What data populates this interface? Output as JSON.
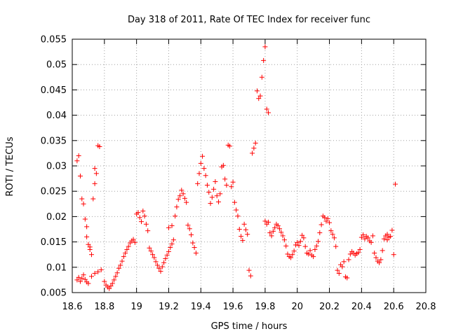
{
  "chart_data": {
    "type": "scatter",
    "title": "Day 318 of 2011, Rate Of TEC Index for receiver func",
    "xlabel": "GPS time / hours",
    "ylabel": "ROTI / TECUs",
    "xlim": [
      18.6,
      20.8
    ],
    "ylim": [
      0.005,
      0.055
    ],
    "x_ticks": [
      18.6,
      18.8,
      19,
      19.2,
      19.4,
      19.6,
      19.8,
      20,
      20.2,
      20.4,
      20.6,
      20.8
    ],
    "x_tick_labels": [
      "18.6",
      "18.8",
      "19",
      "19.2",
      "19.4",
      "19.6",
      "19.8",
      "20",
      "20.2",
      "20.4",
      "20.6",
      "20.8"
    ],
    "y_ticks": [
      0.005,
      0.01,
      0.015,
      0.02,
      0.025,
      0.03,
      0.035,
      0.04,
      0.045,
      0.05,
      0.055
    ],
    "y_tick_labels": [
      "0.005",
      "0.01",
      "0.015",
      "0.02",
      "0.025",
      "0.03",
      "0.035",
      "0.04",
      "0.045",
      "0.05",
      "0.055"
    ],
    "grid": true,
    "marker": "+",
    "colors": {
      "points": "#ff0000",
      "grid": "#a0a0a0",
      "axis": "#000000"
    },
    "series": [
      {
        "points": [
          [
            18.63,
            0.031
          ],
          [
            18.64,
            0.032
          ],
          [
            18.65,
            0.028
          ],
          [
            18.66,
            0.0235
          ],
          [
            18.67,
            0.0225
          ],
          [
            18.68,
            0.0195
          ],
          [
            18.69,
            0.018
          ],
          [
            18.7,
            0.0145
          ],
          [
            18.71,
            0.0135
          ],
          [
            18.72,
            0.0125
          ],
          [
            18.73,
            0.0235
          ],
          [
            18.74,
            0.0265
          ],
          [
            18.75,
            0.0285
          ],
          [
            18.76,
            0.034
          ],
          [
            18.77,
            0.0338
          ],
          [
            18.74,
            0.0295
          ],
          [
            18.71,
            0.014
          ],
          [
            18.69,
            0.016
          ],
          [
            18.63,
            0.0075
          ],
          [
            18.64,
            0.008
          ],
          [
            18.65,
            0.0072
          ],
          [
            18.66,
            0.0078
          ],
          [
            18.67,
            0.0085
          ],
          [
            18.68,
            0.0076
          ],
          [
            18.69,
            0.0071
          ],
          [
            18.7,
            0.0068
          ],
          [
            18.72,
            0.0082
          ],
          [
            18.74,
            0.0088
          ],
          [
            18.76,
            0.0091
          ],
          [
            18.78,
            0.0095
          ],
          [
            18.8,
            0.0072
          ],
          [
            18.81,
            0.0065
          ],
          [
            18.82,
            0.0061
          ],
          [
            18.83,
            0.0058
          ],
          [
            18.84,
            0.0063
          ],
          [
            18.85,
            0.0068
          ],
          [
            18.86,
            0.0075
          ],
          [
            18.87,
            0.0082
          ],
          [
            18.88,
            0.0089
          ],
          [
            18.89,
            0.0098
          ],
          [
            18.9,
            0.0104
          ],
          [
            18.91,
            0.0112
          ],
          [
            18.92,
            0.0121
          ],
          [
            18.93,
            0.0128
          ],
          [
            18.94,
            0.0135
          ],
          [
            18.95,
            0.0141
          ],
          [
            18.96,
            0.0148
          ],
          [
            18.97,
            0.0152
          ],
          [
            18.98,
            0.0155
          ],
          [
            18.99,
            0.0149
          ],
          [
            19.0,
            0.0205
          ],
          [
            19.01,
            0.0208
          ],
          [
            19.02,
            0.0198
          ],
          [
            19.03,
            0.019
          ],
          [
            19.04,
            0.0211
          ],
          [
            19.05,
            0.0201
          ],
          [
            19.06,
            0.0185
          ],
          [
            19.07,
            0.0172
          ],
          [
            19.08,
            0.0138
          ],
          [
            19.09,
            0.0132
          ],
          [
            19.1,
            0.0125
          ],
          [
            19.11,
            0.0119
          ],
          [
            19.12,
            0.0111
          ],
          [
            19.13,
            0.0104
          ],
          [
            19.14,
            0.0098
          ],
          [
            19.15,
            0.0092
          ],
          [
            19.16,
            0.0101
          ],
          [
            19.17,
            0.0109
          ],
          [
            19.18,
            0.0117
          ],
          [
            19.19,
            0.0124
          ],
          [
            19.2,
            0.0131
          ],
          [
            19.21,
            0.0139
          ],
          [
            19.22,
            0.0146
          ],
          [
            19.23,
            0.0154
          ],
          [
            19.2,
            0.0178
          ],
          [
            19.22,
            0.0182
          ],
          [
            19.24,
            0.0201
          ],
          [
            19.25,
            0.0219
          ],
          [
            19.26,
            0.0234
          ],
          [
            19.27,
            0.0241
          ],
          [
            19.28,
            0.0252
          ],
          [
            19.29,
            0.0245
          ],
          [
            19.3,
            0.0236
          ],
          [
            19.31,
            0.0228
          ],
          [
            19.32,
            0.0183
          ],
          [
            19.33,
            0.0176
          ],
          [
            19.34,
            0.0164
          ],
          [
            19.35,
            0.0148
          ],
          [
            19.36,
            0.0139
          ],
          [
            19.37,
            0.0128
          ],
          [
            19.38,
            0.0265
          ],
          [
            19.39,
            0.0285
          ],
          [
            19.4,
            0.0305
          ],
          [
            19.41,
            0.0319
          ],
          [
            19.42,
            0.0295
          ],
          [
            19.43,
            0.0281
          ],
          [
            19.44,
            0.0262
          ],
          [
            19.45,
            0.0248
          ],
          [
            19.46,
            0.0226
          ],
          [
            19.47,
            0.0238
          ],
          [
            19.48,
            0.0254
          ],
          [
            19.49,
            0.0269
          ],
          [
            19.5,
            0.0241
          ],
          [
            19.51,
            0.0229
          ],
          [
            19.52,
            0.0245
          ],
          [
            19.53,
            0.0298
          ],
          [
            19.54,
            0.0301
          ],
          [
            19.55,
            0.0274
          ],
          [
            19.56,
            0.0262
          ],
          [
            19.57,
            0.0341
          ],
          [
            19.58,
            0.0339
          ],
          [
            19.59,
            0.0259
          ],
          [
            19.6,
            0.0268
          ],
          [
            19.61,
            0.0228
          ],
          [
            19.62,
            0.0213
          ],
          [
            19.63,
            0.0201
          ],
          [
            19.64,
            0.0175
          ],
          [
            19.65,
            0.0161
          ],
          [
            19.66,
            0.0153
          ],
          [
            19.67,
            0.0185
          ],
          [
            19.68,
            0.0174
          ],
          [
            19.69,
            0.0165
          ],
          [
            19.7,
            0.0094
          ],
          [
            19.71,
            0.0083
          ],
          [
            19.72,
            0.0325
          ],
          [
            19.73,
            0.0335
          ],
          [
            19.74,
            0.0345
          ],
          [
            19.75,
            0.0448
          ],
          [
            19.76,
            0.0433
          ],
          [
            19.77,
            0.0438
          ],
          [
            19.78,
            0.0475
          ],
          [
            19.79,
            0.0508
          ],
          [
            19.8,
            0.0535
          ],
          [
            19.81,
            0.0412
          ],
          [
            19.82,
            0.0405
          ],
          [
            19.8,
            0.0191
          ],
          [
            19.81,
            0.0185
          ],
          [
            19.82,
            0.0189
          ],
          [
            19.83,
            0.0168
          ],
          [
            19.84,
            0.0162
          ],
          [
            19.85,
            0.0171
          ],
          [
            19.86,
            0.0178
          ],
          [
            19.87,
            0.0185
          ],
          [
            19.88,
            0.0182
          ],
          [
            19.89,
            0.0176
          ],
          [
            19.9,
            0.0169
          ],
          [
            19.91,
            0.0162
          ],
          [
            19.92,
            0.0154
          ],
          [
            19.93,
            0.0142
          ],
          [
            19.94,
            0.0126
          ],
          [
            19.95,
            0.0121
          ],
          [
            19.96,
            0.0119
          ],
          [
            19.97,
            0.0125
          ],
          [
            19.98,
            0.0132
          ],
          [
            19.99,
            0.0144
          ],
          [
            20.0,
            0.0149
          ],
          [
            20.01,
            0.0143
          ],
          [
            20.02,
            0.0151
          ],
          [
            20.03,
            0.0163
          ],
          [
            20.04,
            0.0158
          ],
          [
            20.05,
            0.0141
          ],
          [
            20.06,
            0.0128
          ],
          [
            20.07,
            0.0126
          ],
          [
            20.08,
            0.0133
          ],
          [
            20.09,
            0.0124
          ],
          [
            20.1,
            0.0121
          ],
          [
            20.11,
            0.0135
          ],
          [
            20.12,
            0.0142
          ],
          [
            20.13,
            0.0151
          ],
          [
            20.14,
            0.0168
          ],
          [
            20.15,
            0.0184
          ],
          [
            20.16,
            0.0201
          ],
          [
            20.17,
            0.0198
          ],
          [
            20.18,
            0.0191
          ],
          [
            20.19,
            0.0196
          ],
          [
            20.2,
            0.0188
          ],
          [
            20.21,
            0.0172
          ],
          [
            20.22,
            0.0165
          ],
          [
            20.23,
            0.0158
          ],
          [
            20.24,
            0.0141
          ],
          [
            20.25,
            0.0094
          ],
          [
            20.26,
            0.0088
          ],
          [
            20.27,
            0.0105
          ],
          [
            20.28,
            0.0101
          ],
          [
            20.29,
            0.0111
          ],
          [
            20.3,
            0.0081
          ],
          [
            20.31,
            0.0079
          ],
          [
            20.32,
            0.0115
          ],
          [
            20.33,
            0.0126
          ],
          [
            20.34,
            0.0131
          ],
          [
            20.35,
            0.0128
          ],
          [
            20.36,
            0.0124
          ],
          [
            20.37,
            0.0127
          ],
          [
            20.38,
            0.0129
          ],
          [
            20.39,
            0.0135
          ],
          [
            20.4,
            0.0159
          ],
          [
            20.41,
            0.0164
          ],
          [
            20.42,
            0.0156
          ],
          [
            20.43,
            0.0161
          ],
          [
            20.44,
            0.0158
          ],
          [
            20.45,
            0.0152
          ],
          [
            20.46,
            0.0149
          ],
          [
            20.47,
            0.0162
          ],
          [
            20.48,
            0.0128
          ],
          [
            20.49,
            0.0119
          ],
          [
            20.5,
            0.0112
          ],
          [
            20.51,
            0.0109
          ],
          [
            20.52,
            0.0115
          ],
          [
            20.53,
            0.0133
          ],
          [
            20.54,
            0.0156
          ],
          [
            20.55,
            0.0162
          ],
          [
            20.56,
            0.0165
          ],
          [
            20.57,
            0.0159
          ],
          [
            20.58,
            0.0161
          ],
          [
            20.59,
            0.0173
          ],
          [
            20.6,
            0.0125
          ],
          [
            20.61,
            0.0264
          ],
          [
            20.56,
            0.0154
          ]
        ]
      }
    ]
  }
}
